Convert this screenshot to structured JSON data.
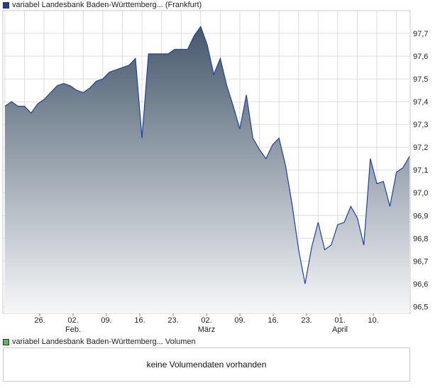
{
  "legend": {
    "price_label": "variabel Landesbank Baden-Württemberg... (Frankfurt)",
    "price_color": "#1f3fa8",
    "volume_label": "variabel Landesbank Baden-Württemberg... Volumen",
    "volume_color": "#5cb85c"
  },
  "volume": {
    "empty_message": "keine Volumendaten vorhanden"
  },
  "chart_data": {
    "type": "area",
    "title": "",
    "xlabel": "",
    "ylabel": "",
    "ylim": [
      96.47,
      97.8
    ],
    "y_ticks": [
      96.5,
      96.6,
      96.7,
      96.8,
      96.9,
      97.0,
      97.1,
      97.2,
      97.3,
      97.4,
      97.5,
      97.6,
      97.7
    ],
    "y_tick_labels": [
      "96,5",
      "96,6",
      "96,7",
      "96,8",
      "96,9",
      "97,0",
      "97,1",
      "97,2",
      "97,3",
      "97,4",
      "97,5",
      "97,6",
      "97,7"
    ],
    "x_day_labels": [
      "26.",
      "02.",
      "09.",
      "16.",
      "23.",
      "02.",
      "09.",
      "16.",
      "23.",
      "01.",
      "10."
    ],
    "x_month_labels": [
      {
        "label": "Feb.",
        "under_day_index": 1
      },
      {
        "label": "März",
        "under_day_index": 5
      },
      {
        "label": "April",
        "under_day_index": 9
      }
    ],
    "grid": true,
    "line_color": "#1f3fa8",
    "fill_top_color": "#45586b",
    "fill_bottom_color": "#f6f7f9",
    "series": [
      {
        "values": [
          97.38,
          97.4,
          97.38,
          97.38,
          97.35,
          97.39,
          97.41,
          97.44,
          97.47,
          97.48,
          97.47,
          97.45,
          97.44,
          97.46,
          97.49,
          97.5,
          97.53,
          97.54,
          97.55,
          97.56,
          97.59,
          97.24,
          97.61,
          97.61,
          97.61,
          97.61,
          97.63,
          97.63,
          97.63,
          97.69,
          97.73,
          97.65,
          97.52,
          97.59,
          97.47,
          97.38,
          97.28,
          97.43,
          97.24,
          97.19,
          97.15,
          97.21,
          97.24,
          97.12,
          96.95,
          96.75,
          96.6,
          96.76,
          96.87,
          96.75,
          96.77,
          96.86,
          96.87,
          96.94,
          96.89,
          96.77,
          97.15,
          97.04,
          97.05,
          96.94,
          97.09,
          97.11,
          97.16
        ]
      }
    ]
  }
}
